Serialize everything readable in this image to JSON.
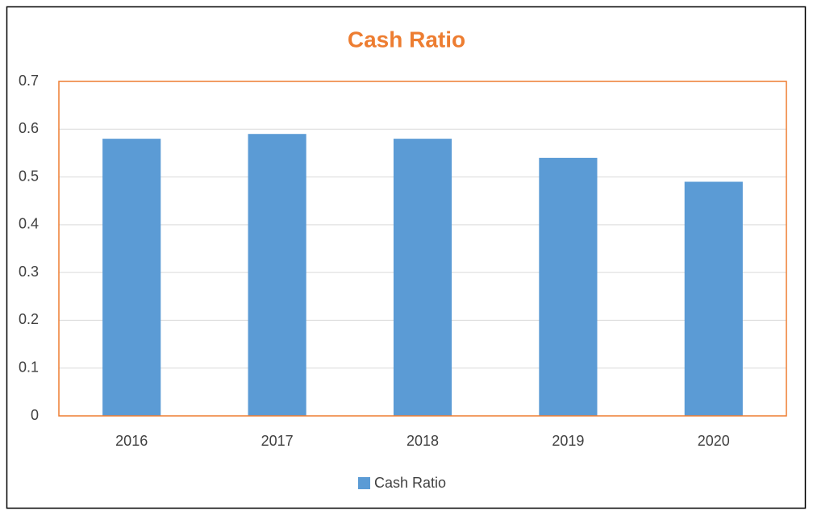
{
  "chart_data": {
    "type": "bar",
    "title": "Cash Ratio",
    "categories": [
      "2016",
      "2017",
      "2018",
      "2019",
      "2020"
    ],
    "series": [
      {
        "name": "Cash Ratio",
        "color": "#5b9bd5",
        "values": [
          0.58,
          0.59,
          0.58,
          0.54,
          0.49
        ]
      }
    ],
    "ylim": [
      0,
      0.7
    ],
    "yticks": [
      0,
      0.1,
      0.2,
      0.3,
      0.4,
      0.5,
      0.6,
      0.7
    ],
    "grid": true,
    "legend": "bottom",
    "title_color": "#ed7d31",
    "plot_border_color": "#ed7d31"
  }
}
